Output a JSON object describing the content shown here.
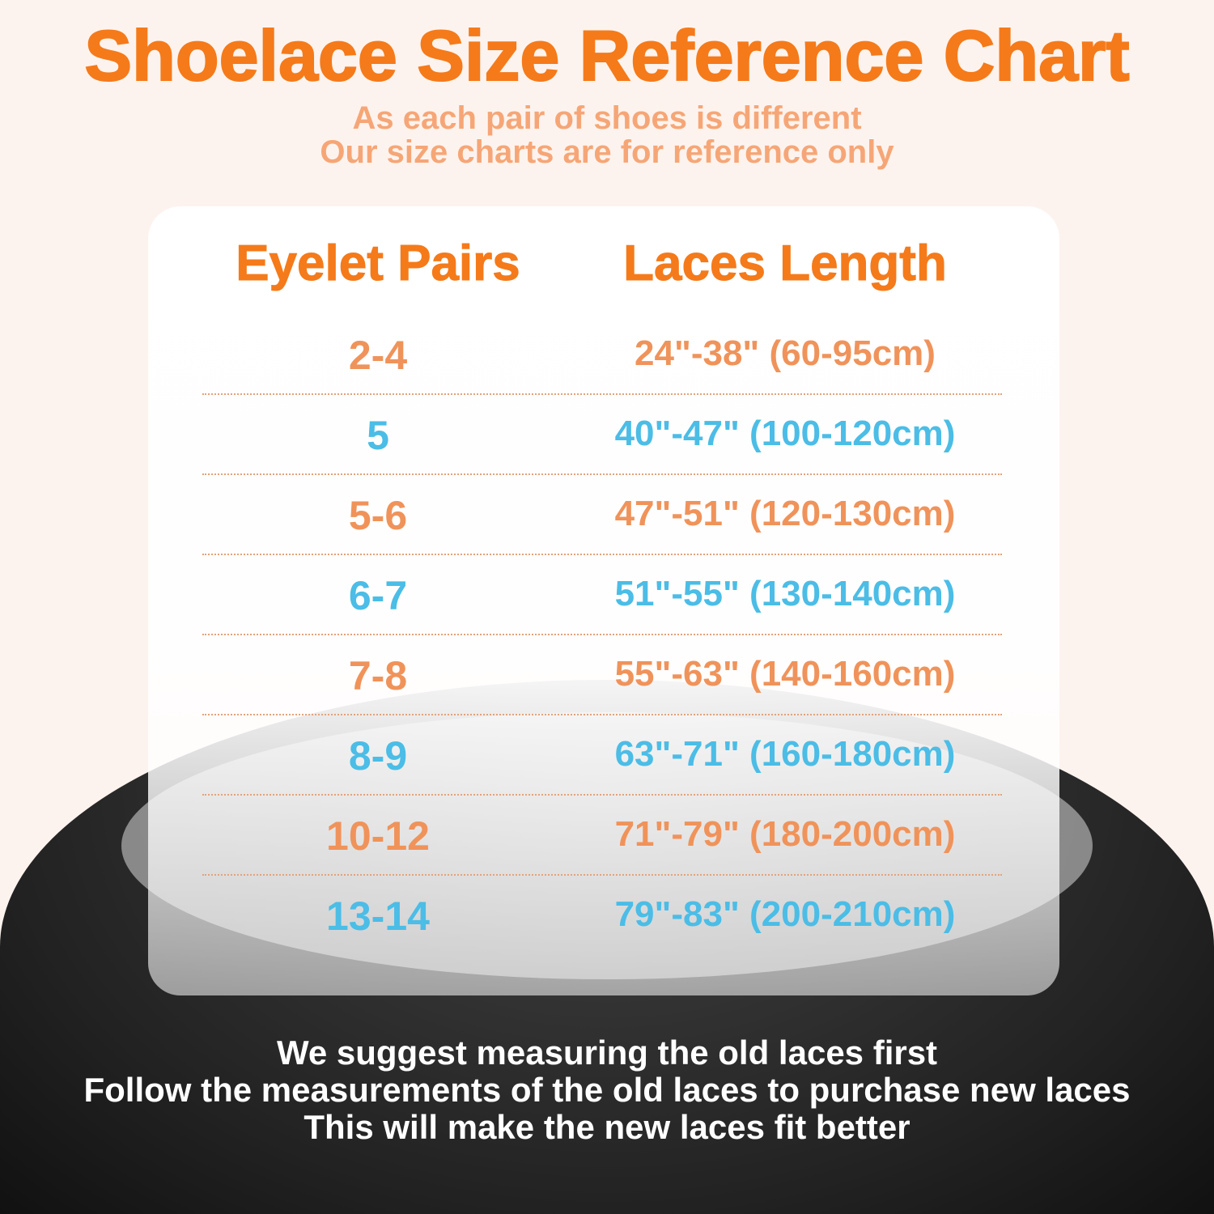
{
  "title": "Shoelace Size Reference Chart",
  "subtitle": [
    "As each pair of shoes is different",
    "Our size charts are for reference only"
  ],
  "table": {
    "headers": [
      "Eyelet Pairs",
      "Laces Length"
    ],
    "rows": [
      {
        "pairs": "2-4",
        "length": "24\"-38\" (60-95cm)",
        "color": "#f0935a"
      },
      {
        "pairs": "5",
        "length": "40\"-47\" (100-120cm)",
        "color": "#4bbde6"
      },
      {
        "pairs": "5-6",
        "length": "47\"-51\" (120-130cm)",
        "color": "#f0935a"
      },
      {
        "pairs": "6-7",
        "length": "51\"-55\" (130-140cm)",
        "color": "#4bbde6"
      },
      {
        "pairs": "7-8",
        "length": "55\"-63\" (140-160cm)",
        "color": "#f0935a"
      },
      {
        "pairs": "8-9",
        "length": "63\"-71\" (160-180cm)",
        "color": "#4bbde6"
      },
      {
        "pairs": "10-12",
        "length": "71\"-79\" (180-200cm)",
        "color": "#f0935a"
      },
      {
        "pairs": "13-14",
        "length": "79\"-83\" (200-210cm)",
        "color": "#4bbde6"
      }
    ]
  },
  "footer": [
    "We suggest measuring the old laces first",
    "Follow the measurements of the old laces to purchase new laces",
    "This will make the new laces fit better"
  ],
  "colors": {
    "accent": "#f57a1a",
    "orange_row": "#f0935a",
    "blue_row": "#4bbde6"
  }
}
